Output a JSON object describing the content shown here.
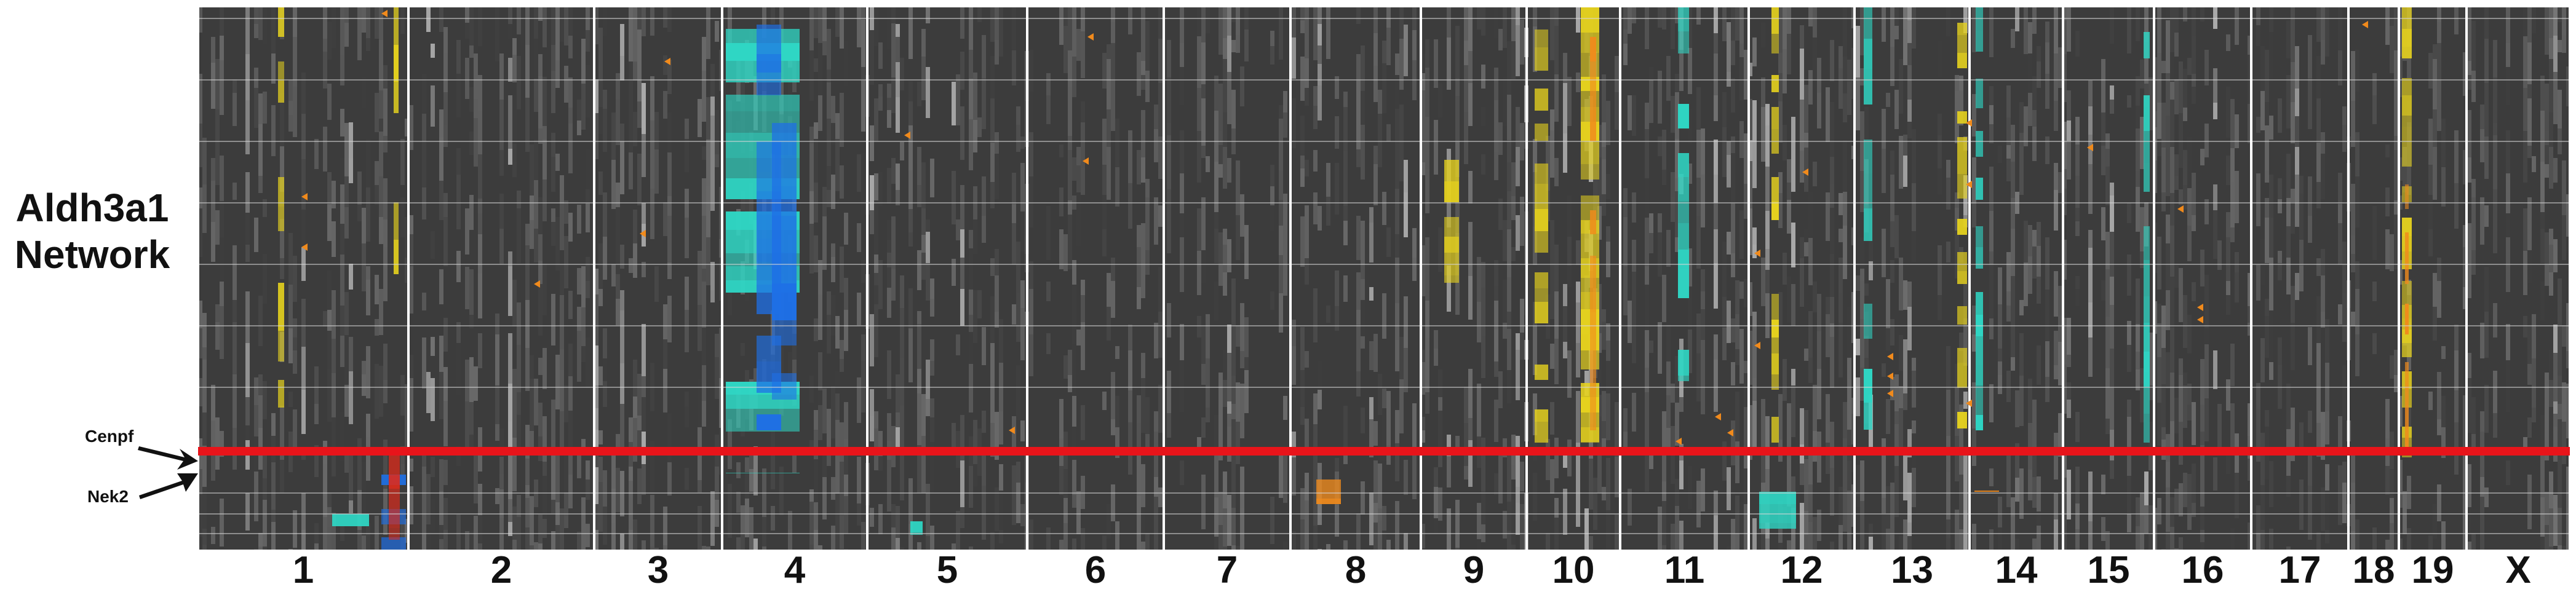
{
  "figure": {
    "title_lines": [
      "Aldh3a1",
      "Network"
    ],
    "gene_labels": {
      "upper": "Cenpf",
      "lower": "Nek2"
    },
    "chromosomes": [
      "1",
      "2",
      "3",
      "4",
      "5",
      "6",
      "7",
      "8",
      "9",
      "10",
      "11",
      "12",
      "13",
      "14",
      "15",
      "16",
      "17",
      "18",
      "19",
      "X"
    ],
    "colors": {
      "background_cell": "#3c3c3c",
      "highlight_line": "#e8141a",
      "grid_line": "#d8d8d8",
      "separator": "#ffffff",
      "yellow": "#e6d21e",
      "cyan": "#2fd6c4",
      "blue": "#1e6fe6",
      "orange": "#f08a1c",
      "red": "#e02a1a"
    }
  }
}
